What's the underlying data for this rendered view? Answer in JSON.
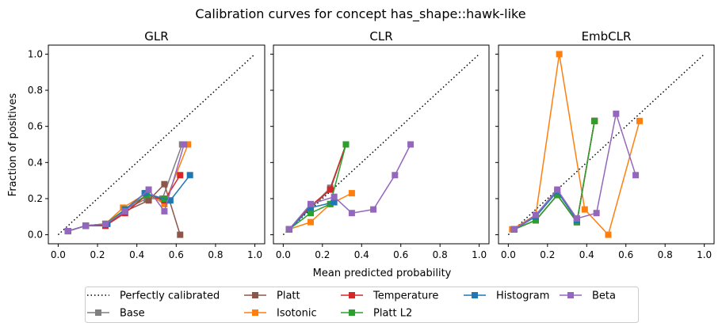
{
  "title": "Calibration curves for concept has_shape::hawk-like",
  "xlabel": "Mean predicted probability",
  "ylabel": "Fraction of positives",
  "colors": {
    "perfect": "#000000",
    "Base": "#7f7f7f",
    "Platt": "#8c564b",
    "Isotonic": "#ff7f0e",
    "Temperature": "#d62728",
    "Platt L2": "#2ca02c",
    "Histogram": "#1f77b4",
    "Beta": "#9467bd"
  },
  "legend": {
    "placement": "bottom-center",
    "entries": [
      "Perfectly calibrated",
      "Base",
      "Platt",
      "Isotonic",
      "Temperature",
      "Platt L2",
      "Histogram",
      "Beta"
    ]
  },
  "chart_data": [
    {
      "type": "line",
      "title": "GLR",
      "xlim": [
        -0.05,
        1.05
      ],
      "ylim": [
        -0.05,
        1.05
      ],
      "xticks": [
        "0.0",
        "0.2",
        "0.4",
        "0.6",
        "0.8",
        "1.0"
      ],
      "yticks": [
        "0.0",
        "0.2",
        "0.4",
        "0.6",
        "0.8",
        "1.0"
      ],
      "series": [
        {
          "name": "Perfectly calibrated",
          "x": [
            0,
            1
          ],
          "y": [
            0,
            1
          ]
        },
        {
          "name": "Base",
          "x": [
            0.05,
            0.14,
            0.24,
            0.34,
            0.45,
            0.53,
            0.63
          ],
          "y": [
            0.02,
            0.05,
            0.06,
            0.14,
            0.2,
            0.2,
            0.5
          ]
        },
        {
          "name": "Platt",
          "x": [
            0.05,
            0.14,
            0.24,
            0.34,
            0.46,
            0.54,
            0.62
          ],
          "y": [
            0.02,
            0.05,
            0.05,
            0.13,
            0.19,
            0.28,
            0.0
          ]
        },
        {
          "name": "Isotonic",
          "x": [
            0.05,
            0.14,
            0.24,
            0.33,
            0.45,
            0.54,
            0.66
          ],
          "y": [
            0.02,
            0.05,
            0.06,
            0.15,
            0.23,
            0.17,
            0.5
          ]
        },
        {
          "name": "Temperature",
          "x": [
            0.05,
            0.14,
            0.24,
            0.34,
            0.45,
            0.54,
            0.62
          ],
          "y": [
            0.02,
            0.05,
            0.05,
            0.12,
            0.22,
            0.19,
            0.33
          ]
        },
        {
          "name": "Platt L2",
          "x": [
            0.05,
            0.14,
            0.24,
            0.34,
            0.45,
            0.54
          ],
          "y": [
            0.02,
            0.05,
            0.06,
            0.14,
            0.22,
            0.2
          ]
        },
        {
          "name": "Histogram",
          "x": [
            0.05,
            0.14,
            0.25,
            0.34,
            0.44,
            0.57,
            0.67
          ],
          "y": [
            0.02,
            0.05,
            0.06,
            0.14,
            0.23,
            0.19,
            0.33
          ]
        },
        {
          "name": "Beta",
          "x": [
            0.05,
            0.14,
            0.24,
            0.34,
            0.46,
            0.54,
            0.64
          ],
          "y": [
            0.02,
            0.05,
            0.06,
            0.13,
            0.25,
            0.13,
            0.5
          ]
        }
      ]
    },
    {
      "type": "line",
      "title": "CLR",
      "xlim": [
        -0.05,
        1.05
      ],
      "ylim": [
        -0.05,
        1.05
      ],
      "xticks": [
        "0.0",
        "0.2",
        "0.4",
        "0.6",
        "0.8",
        "1.0"
      ],
      "yticks": [],
      "series": [
        {
          "name": "Perfectly calibrated",
          "x": [
            0,
            1
          ],
          "y": [
            0,
            1
          ]
        },
        {
          "name": "Base",
          "x": [
            0.03,
            0.14,
            0.24,
            0.32
          ],
          "y": [
            0.03,
            0.15,
            0.26,
            0.5
          ]
        },
        {
          "name": "Platt",
          "x": [
            0.03,
            0.14,
            0.24,
            0.32
          ],
          "y": [
            0.03,
            0.15,
            0.25,
            0.5
          ]
        },
        {
          "name": "Isotonic",
          "x": [
            0.03,
            0.14,
            0.24,
            0.35
          ],
          "y": [
            0.03,
            0.07,
            0.17,
            0.23
          ]
        },
        {
          "name": "Temperature",
          "x": [
            0.03,
            0.14,
            0.24,
            0.32
          ],
          "y": [
            0.03,
            0.16,
            0.25,
            0.5
          ]
        },
        {
          "name": "Platt L2",
          "x": [
            0.03,
            0.14,
            0.24,
            0.32
          ],
          "y": [
            0.03,
            0.12,
            0.17,
            0.5
          ]
        },
        {
          "name": "Histogram",
          "x": [
            0.03,
            0.14,
            0.26
          ],
          "y": [
            0.03,
            0.15,
            0.18
          ]
        },
        {
          "name": "Beta",
          "x": [
            0.03,
            0.14,
            0.26,
            0.35,
            0.46,
            0.57,
            0.65
          ],
          "y": [
            0.03,
            0.17,
            0.21,
            0.12,
            0.14,
            0.33,
            0.5
          ]
        }
      ]
    },
    {
      "type": "line",
      "title": "EmbCLR",
      "xlim": [
        -0.05,
        1.05
      ],
      "ylim": [
        -0.05,
        1.05
      ],
      "xticks": [
        "0.0",
        "0.2",
        "0.4",
        "0.6",
        "0.8",
        "1.0"
      ],
      "yticks": [],
      "series": [
        {
          "name": "Perfectly calibrated",
          "x": [
            0,
            1
          ],
          "y": [
            0,
            1
          ]
        },
        {
          "name": "Base",
          "x": [
            0.03,
            0.14,
            0.25,
            0.35,
            0.44
          ],
          "y": [
            0.03,
            0.08,
            0.22,
            0.07,
            0.63
          ]
        },
        {
          "name": "Platt",
          "x": [
            0.03,
            0.14,
            0.25,
            0.35,
            0.44
          ],
          "y": [
            0.03,
            0.08,
            0.22,
            0.07,
            0.63
          ]
        },
        {
          "name": "Isotonic",
          "x": [
            0.02,
            0.14,
            0.26,
            0.39,
            0.51,
            0.67
          ],
          "y": [
            0.03,
            0.11,
            1.0,
            0.14,
            0.0,
            0.63
          ]
        },
        {
          "name": "Temperature",
          "x": [
            0.03,
            0.14,
            0.25,
            0.35,
            0.44
          ],
          "y": [
            0.03,
            0.08,
            0.22,
            0.07,
            0.63
          ]
        },
        {
          "name": "Platt L2",
          "x": [
            0.03,
            0.14,
            0.25,
            0.35,
            0.44
          ],
          "y": [
            0.03,
            0.08,
            0.22,
            0.07,
            0.63
          ]
        },
        {
          "name": "Histogram",
          "x": [
            0.03,
            0.14,
            0.25,
            0.35
          ],
          "y": [
            0.03,
            0.1,
            0.24,
            0.08
          ]
        },
        {
          "name": "Beta",
          "x": [
            0.03,
            0.14,
            0.25,
            0.35,
            0.45,
            0.55,
            0.65
          ],
          "y": [
            0.03,
            0.11,
            0.25,
            0.09,
            0.12,
            0.67,
            0.33
          ]
        }
      ]
    }
  ]
}
